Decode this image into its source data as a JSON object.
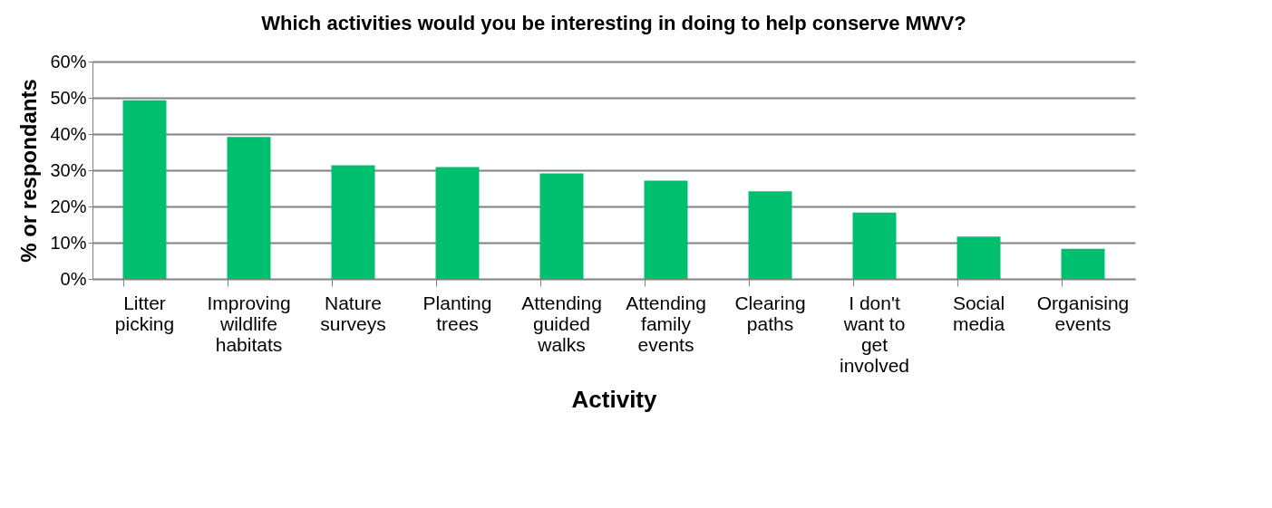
{
  "chart_data": {
    "type": "bar",
    "title": "Which activities would you be interesting in doing to help conserve MWV?",
    "xlabel": "Activity",
    "ylabel": "% or respondants",
    "categories": [
      "Litter picking",
      "Improving wildlife habitats",
      "Nature surveys",
      "Planting trees",
      "Attending guided walks",
      "Attending family events",
      "Clearing paths",
      "I don't want to get involved",
      "Social media",
      "Organising events"
    ],
    "values": [
      49.3,
      39.2,
      31.4,
      30.9,
      29.1,
      27.1,
      24.2,
      18.3,
      11.7,
      8.3
    ],
    "color": "#00bf6f",
    "ylim": [
      0,
      60
    ],
    "yticks": [
      {
        "value": 0,
        "label": "0%"
      },
      {
        "value": 10,
        "label": "10%"
      },
      {
        "value": 20,
        "label": "20%"
      },
      {
        "value": 30,
        "label": "30%"
      },
      {
        "value": 40,
        "label": "40%"
      },
      {
        "value": 50,
        "label": "50%"
      },
      {
        "value": 60,
        "label": "60%"
      }
    ],
    "grid": "y"
  }
}
